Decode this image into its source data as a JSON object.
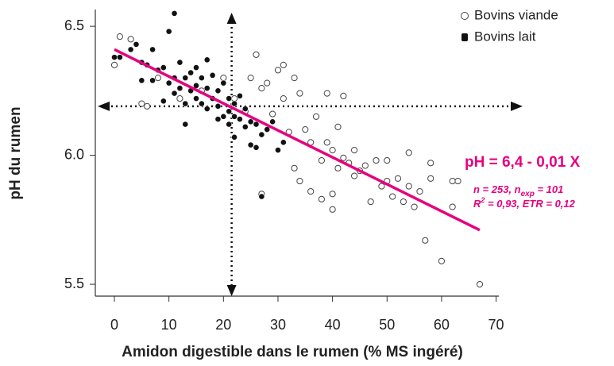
{
  "chart_data": {
    "type": "scatter",
    "x_label": "Amidon digestible dans le rumen (% MS ingéré)",
    "y_label": "pH du rumen",
    "xlim": [
      -3.5,
      70.5
    ],
    "ylim": [
      5.454,
      6.565
    ],
    "xticks": [
      0,
      10,
      20,
      30,
      40,
      50,
      60,
      70
    ],
    "yticks": [
      5.5,
      {
        "value": 6,
        "label": "6.0"
      },
      6.5
    ],
    "legend": "top-right",
    "series": [
      {
        "name": "Bovins viande",
        "marker": "open",
        "color": "#444",
        "x": [
          0,
          1,
          3,
          5,
          6,
          8,
          12,
          16,
          20,
          22,
          24,
          25,
          26,
          27,
          28,
          29,
          30,
          31,
          31,
          32,
          33,
          33,
          34,
          34,
          35,
          36,
          37,
          38,
          38,
          39,
          39,
          40,
          40,
          40,
          41,
          41,
          42,
          42,
          43,
          44,
          44,
          45,
          46,
          47,
          48,
          49,
          50,
          50,
          51,
          52,
          53,
          54,
          54,
          55,
          56,
          57,
          58,
          58,
          60,
          62,
          62,
          63,
          67,
          36,
          27
        ],
        "values": [
          6.35,
          6.46,
          6.45,
          6.2,
          6.19,
          6.3,
          6.22,
          6.25,
          6.3,
          6.22,
          6.17,
          6.3,
          6.39,
          6.26,
          6.28,
          6.16,
          6.33,
          6.35,
          6.22,
          6.09,
          6.3,
          5.95,
          6.24,
          5.9,
          6.1,
          6.05,
          6.15,
          5.98,
          5.83,
          6.24,
          6.05,
          6.02,
          5.85,
          5.79,
          6.11,
          5.95,
          6.23,
          5.99,
          5.97,
          6.02,
          5.92,
          5.94,
          5.96,
          5.82,
          5.98,
          5.88,
          5.98,
          5.9,
          5.84,
          5.91,
          5.82,
          6.01,
          5.88,
          5.8,
          5.86,
          5.67,
          5.97,
          5.91,
          5.59,
          5.8,
          5.9,
          5.9,
          5.5,
          5.86,
          5.85
        ]
      },
      {
        "name": "Bovins lait",
        "marker": "filled",
        "color": "#111",
        "x": [
          0,
          1,
          3,
          4,
          5,
          5,
          6,
          7,
          8,
          9,
          10,
          10,
          11,
          11,
          12,
          12,
          13,
          13,
          14,
          14,
          15,
          15,
          16,
          16,
          17,
          17,
          18,
          18,
          19,
          19,
          20,
          20,
          21,
          21,
          21,
          22,
          22,
          23,
          23,
          24,
          24,
          25,
          25,
          26,
          26,
          27,
          27,
          28,
          29,
          30,
          31,
          17,
          9,
          7,
          11,
          13,
          15,
          19,
          22
        ],
        "values": [
          6.38,
          6.38,
          6.41,
          6.43,
          6.36,
          6.29,
          6.35,
          6.29,
          6.33,
          6.34,
          6.48,
          6.28,
          6.55,
          6.3,
          6.36,
          6.26,
          6.12,
          6.3,
          6.32,
          6.25,
          6.34,
          6.22,
          6.3,
          6.2,
          6.26,
          6.18,
          6.31,
          6.22,
          6.19,
          6.25,
          6.28,
          6.15,
          6.22,
          6.12,
          6.17,
          6.07,
          6.2,
          6.14,
          6.23,
          6.11,
          6.18,
          6.04,
          6.13,
          6.03,
          6.12,
          6.08,
          5.84,
          6.1,
          6.13,
          6.02,
          6.05,
          6.37,
          6.21,
          6.41,
          6.24,
          6.2,
          6.27,
          6.14,
          6.15
        ]
      }
    ],
    "fit_line": {
      "color": "#e6007e",
      "x": [
        0,
        67
      ],
      "values": [
        6.41,
        5.71
      ]
    },
    "reference": {
      "x": 21.5,
      "y": 6.19
    },
    "annotations": {
      "equation": "pH = 6,4 - 0,01 X",
      "stats1": {
        "main": "n = 253, n",
        "sub": "exp",
        "rest": " = 101"
      },
      "stats2": {
        "main": "R",
        "sup": "2",
        "rest": " = 0,93, ETR = 0,12"
      }
    }
  }
}
